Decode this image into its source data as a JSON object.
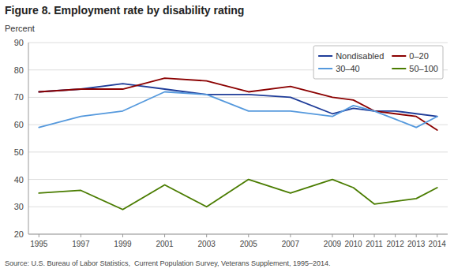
{
  "chart_data": {
    "type": "line",
    "title": "Figure 8. Employment rate by disability rating",
    "ylabel": "Percent",
    "source": "Source: U.S. Bureau of Labor Statistics,  Current Population Survey, Veterans Supplement, 1995–2014.",
    "x": [
      1995,
      1997,
      1999,
      2001,
      2003,
      2005,
      2007,
      2009,
      2010,
      2011,
      2012,
      2013,
      2014
    ],
    "series": [
      {
        "name": "Nondisabled",
        "color": "#1f3d99",
        "values": [
          72,
          73,
          75,
          73,
          71,
          71,
          70,
          64,
          66,
          65,
          65,
          64,
          63
        ]
      },
      {
        "name": "0–20",
        "color": "#8b0000",
        "values": [
          72,
          73,
          73,
          77,
          76,
          72,
          74,
          70,
          69,
          65,
          64,
          63,
          58
        ]
      },
      {
        "name": "30–40",
        "color": "#5599dd",
        "values": [
          59,
          63,
          65,
          72,
          71,
          65,
          65,
          63,
          67,
          65,
          62,
          59,
          63
        ]
      },
      {
        "name": "50–100",
        "color": "#4a7c00",
        "values": [
          35,
          36,
          29,
          38,
          30,
          40,
          35,
          40,
          37,
          31,
          32,
          33,
          37
        ]
      }
    ],
    "xlim": [
      1994.5,
      2014.5
    ],
    "xticks": [
      1995,
      1997,
      1999,
      2001,
      2003,
      2005,
      2007,
      2009,
      2010,
      2011,
      2012,
      2013,
      2014
    ],
    "ylim": [
      20,
      90
    ],
    "yticks": [
      20,
      30,
      40,
      50,
      60,
      70,
      80,
      90
    ],
    "grid": true,
    "legend": "upper right"
  }
}
